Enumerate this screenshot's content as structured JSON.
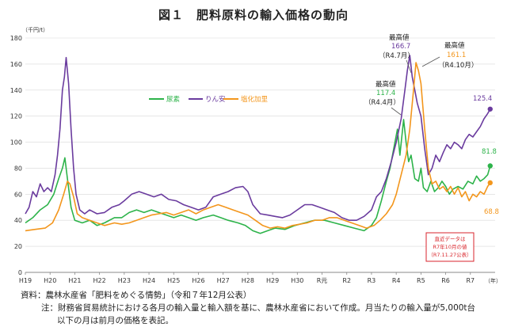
{
  "title": "図１　肥料原料の輸入価格の動向",
  "chart_data": {
    "type": "line",
    "unit_label": "（千円/t）",
    "year_label": "（年）",
    "y_ticks": [
      0,
      20,
      40,
      60,
      80,
      100,
      120,
      140,
      160,
      180
    ],
    "x_ticks": [
      "H19",
      "H20",
      "H21",
      "H22",
      "H23",
      "H24",
      "H25",
      "H26",
      "H27",
      "H28",
      "H29",
      "H30",
      "R元",
      "R2",
      "R3",
      "R4",
      "R5",
      "R6",
      "R7"
    ],
    "ylim": [
      0,
      180
    ],
    "xlim": [
      2007.0,
      2026.0
    ],
    "legend": [
      "尿素",
      "りん安",
      "塩化加里"
    ],
    "series": [
      {
        "name": "尿素",
        "color": "#2db34a",
        "points": [
          [
            2007.0,
            38
          ],
          [
            2007.3,
            42
          ],
          [
            2007.6,
            48
          ],
          [
            2007.9,
            52
          ],
          [
            2008.15,
            60
          ],
          [
            2008.35,
            72
          ],
          [
            2008.5,
            80
          ],
          [
            2008.6,
            88
          ],
          [
            2008.7,
            72
          ],
          [
            2008.85,
            50
          ],
          [
            2009.0,
            40
          ],
          [
            2009.3,
            38
          ],
          [
            2009.6,
            40
          ],
          [
            2009.9,
            36
          ],
          [
            2010.2,
            38
          ],
          [
            2010.6,
            42
          ],
          [
            2010.9,
            42
          ],
          [
            2011.2,
            46
          ],
          [
            2011.5,
            48
          ],
          [
            2011.8,
            46
          ],
          [
            2012.1,
            48
          ],
          [
            2012.4,
            46
          ],
          [
            2012.7,
            44
          ],
          [
            2013.0,
            42
          ],
          [
            2013.3,
            44
          ],
          [
            2013.6,
            42
          ],
          [
            2013.9,
            40
          ],
          [
            2014.2,
            42
          ],
          [
            2014.6,
            44
          ],
          [
            2014.9,
            42
          ],
          [
            2015.2,
            40
          ],
          [
            2015.6,
            38
          ],
          [
            2015.9,
            36
          ],
          [
            2016.2,
            32
          ],
          [
            2016.5,
            30
          ],
          [
            2016.8,
            32
          ],
          [
            2017.1,
            34
          ],
          [
            2017.5,
            33
          ],
          [
            2017.9,
            36
          ],
          [
            2018.3,
            38
          ],
          [
            2018.7,
            40
          ],
          [
            2019.1,
            40
          ],
          [
            2019.5,
            38
          ],
          [
            2019.9,
            36
          ],
          [
            2020.3,
            34
          ],
          [
            2020.7,
            32
          ],
          [
            2021.0,
            36
          ],
          [
            2021.2,
            42
          ],
          [
            2021.4,
            55
          ],
          [
            2021.6,
            70
          ],
          [
            2021.75,
            80
          ],
          [
            2021.9,
            95
          ],
          [
            2022.05,
            110
          ],
          [
            2022.15,
            90
          ],
          [
            2022.3,
            117.4
          ],
          [
            2022.4,
            100
          ],
          [
            2022.5,
            85
          ],
          [
            2022.6,
            90
          ],
          [
            2022.75,
            72
          ],
          [
            2022.9,
            70
          ],
          [
            2023.0,
            80
          ],
          [
            2023.1,
            65
          ],
          [
            2023.25,
            62
          ],
          [
            2023.4,
            70
          ],
          [
            2023.55,
            62
          ],
          [
            2023.7,
            65
          ],
          [
            2023.85,
            70
          ],
          [
            2024.0,
            66
          ],
          [
            2024.15,
            60
          ],
          [
            2024.3,
            64
          ],
          [
            2024.5,
            66
          ],
          [
            2024.7,
            64
          ],
          [
            2024.9,
            70
          ],
          [
            2025.1,
            68
          ],
          [
            2025.25,
            74
          ],
          [
            2025.4,
            70
          ],
          [
            2025.55,
            72
          ],
          [
            2025.7,
            75
          ],
          [
            2025.8,
            81.8
          ]
        ]
      },
      {
        "name": "りん安",
        "color": "#6a3b9e",
        "points": [
          [
            2007.0,
            45
          ],
          [
            2007.15,
            50
          ],
          [
            2007.3,
            62
          ],
          [
            2007.45,
            58
          ],
          [
            2007.6,
            68
          ],
          [
            2007.75,
            62
          ],
          [
            2007.9,
            65
          ],
          [
            2008.05,
            62
          ],
          [
            2008.2,
            75
          ],
          [
            2008.3,
            90
          ],
          [
            2008.4,
            110
          ],
          [
            2008.5,
            140
          ],
          [
            2008.58,
            150
          ],
          [
            2008.65,
            165
          ],
          [
            2008.75,
            145
          ],
          [
            2008.85,
            110
          ],
          [
            2008.95,
            80
          ],
          [
            2009.05,
            60
          ],
          [
            2009.2,
            48
          ],
          [
            2009.4,
            45
          ],
          [
            2009.6,
            48
          ],
          [
            2009.9,
            45
          ],
          [
            2010.2,
            46
          ],
          [
            2010.5,
            50
          ],
          [
            2010.8,
            52
          ],
          [
            2011.0,
            55
          ],
          [
            2011.3,
            60
          ],
          [
            2011.6,
            62
          ],
          [
            2011.9,
            60
          ],
          [
            2012.2,
            58
          ],
          [
            2012.5,
            60
          ],
          [
            2012.8,
            56
          ],
          [
            2013.1,
            55
          ],
          [
            2013.4,
            52
          ],
          [
            2013.7,
            50
          ],
          [
            2014.0,
            48
          ],
          [
            2014.3,
            50
          ],
          [
            2014.6,
            58
          ],
          [
            2014.9,
            60
          ],
          [
            2015.2,
            62
          ],
          [
            2015.5,
            65
          ],
          [
            2015.8,
            66
          ],
          [
            2016.0,
            62
          ],
          [
            2016.2,
            52
          ],
          [
            2016.5,
            45
          ],
          [
            2016.8,
            44
          ],
          [
            2017.1,
            43
          ],
          [
            2017.4,
            42
          ],
          [
            2017.7,
            44
          ],
          [
            2018.0,
            48
          ],
          [
            2018.3,
            52
          ],
          [
            2018.6,
            52
          ],
          [
            2018.9,
            50
          ],
          [
            2019.2,
            48
          ],
          [
            2019.5,
            46
          ],
          [
            2019.8,
            42
          ],
          [
            2020.1,
            40
          ],
          [
            2020.4,
            40
          ],
          [
            2020.7,
            43
          ],
          [
            2021.0,
            48
          ],
          [
            2021.2,
            58
          ],
          [
            2021.4,
            62
          ],
          [
            2021.6,
            72
          ],
          [
            2021.8,
            85
          ],
          [
            2022.0,
            100
          ],
          [
            2022.2,
            118
          ],
          [
            2022.35,
            140
          ],
          [
            2022.45,
            155
          ],
          [
            2022.55,
            166.7
          ],
          [
            2022.65,
            150
          ],
          [
            2022.75,
            140
          ],
          [
            2022.85,
            130
          ],
          [
            2023.0,
            120
          ],
          [
            2023.15,
            95
          ],
          [
            2023.3,
            75
          ],
          [
            2023.45,
            80
          ],
          [
            2023.6,
            90
          ],
          [
            2023.75,
            85
          ],
          [
            2023.9,
            92
          ],
          [
            2024.05,
            98
          ],
          [
            2024.2,
            95
          ],
          [
            2024.35,
            100
          ],
          [
            2024.5,
            98
          ],
          [
            2024.65,
            95
          ],
          [
            2024.8,
            102
          ],
          [
            2024.95,
            106
          ],
          [
            2025.1,
            104
          ],
          [
            2025.25,
            108
          ],
          [
            2025.4,
            112
          ],
          [
            2025.55,
            118
          ],
          [
            2025.7,
            122
          ],
          [
            2025.8,
            125.4
          ]
        ]
      },
      {
        "name": "塩化加里",
        "color": "#f3961c",
        "points": [
          [
            2007.0,
            32
          ],
          [
            2007.4,
            33
          ],
          [
            2007.8,
            34
          ],
          [
            2008.1,
            38
          ],
          [
            2008.35,
            48
          ],
          [
            2008.55,
            60
          ],
          [
            2008.7,
            70
          ],
          [
            2008.8,
            68
          ],
          [
            2008.95,
            58
          ],
          [
            2009.1,
            45
          ],
          [
            2009.3,
            42
          ],
          [
            2009.6,
            40
          ],
          [
            2009.9,
            38
          ],
          [
            2010.2,
            36
          ],
          [
            2010.6,
            38
          ],
          [
            2010.9,
            37
          ],
          [
            2011.2,
            38
          ],
          [
            2011.5,
            40
          ],
          [
            2011.8,
            42
          ],
          [
            2012.1,
            44
          ],
          [
            2012.4,
            45
          ],
          [
            2012.7,
            46
          ],
          [
            2013.0,
            44
          ],
          [
            2013.3,
            46
          ],
          [
            2013.6,
            48
          ],
          [
            2013.9,
            45
          ],
          [
            2014.2,
            48
          ],
          [
            2014.5,
            50
          ],
          [
            2014.8,
            52
          ],
          [
            2015.1,
            50
          ],
          [
            2015.4,
            48
          ],
          [
            2015.7,
            46
          ],
          [
            2016.0,
            44
          ],
          [
            2016.3,
            40
          ],
          [
            2016.6,
            36
          ],
          [
            2016.9,
            34
          ],
          [
            2017.2,
            35
          ],
          [
            2017.5,
            34
          ],
          [
            2017.8,
            36
          ],
          [
            2018.1,
            37
          ],
          [
            2018.4,
            38
          ],
          [
            2018.7,
            40
          ],
          [
            2019.0,
            40
          ],
          [
            2019.3,
            42
          ],
          [
            2019.6,
            42
          ],
          [
            2019.9,
            40
          ],
          [
            2020.2,
            38
          ],
          [
            2020.5,
            36
          ],
          [
            2020.8,
            34
          ],
          [
            2021.1,
            36
          ],
          [
            2021.35,
            40
          ],
          [
            2021.6,
            45
          ],
          [
            2021.85,
            52
          ],
          [
            2022.0,
            60
          ],
          [
            2022.2,
            75
          ],
          [
            2022.4,
            90
          ],
          [
            2022.55,
            110
          ],
          [
            2022.7,
            140
          ],
          [
            2022.8,
            161.1
          ],
          [
            2022.9,
            155
          ],
          [
            2023.0,
            145
          ],
          [
            2023.15,
            110
          ],
          [
            2023.3,
            80
          ],
          [
            2023.45,
            68
          ],
          [
            2023.6,
            70
          ],
          [
            2023.75,
            64
          ],
          [
            2023.9,
            66
          ],
          [
            2024.05,
            62
          ],
          [
            2024.2,
            66
          ],
          [
            2024.35,
            60
          ],
          [
            2024.5,
            65
          ],
          [
            2024.65,
            58
          ],
          [
            2024.8,
            62
          ],
          [
            2024.95,
            55
          ],
          [
            2025.1,
            60
          ],
          [
            2025.25,
            58
          ],
          [
            2025.4,
            62
          ],
          [
            2025.55,
            60
          ],
          [
            2025.7,
            66
          ],
          [
            2025.8,
            68.8
          ]
        ]
      }
    ],
    "annotations": {
      "peak_phos_label": "最高値",
      "peak_phos_value": "166.7",
      "peak_phos_date": "（R4.7月）",
      "peak_pot_label": "最高値",
      "peak_pot_value": "161.1",
      "peak_pot_date": "（R4.10月）",
      "peak_urea_label": "最高値",
      "peak_urea_value": "117.4",
      "peak_urea_date": "（R4.4月）",
      "end_phos": "125.4",
      "end_urea": "81.8",
      "end_pot": "68.8",
      "recent_line1": "直近データは",
      "recent_line2": "R7年10月の値",
      "recent_line3": "（R7.11.27公表）"
    }
  },
  "notes": {
    "source": "資料：農林水産省「肥料をめぐる情勢」（令和７年12月公表）",
    "note_line1": "注：財務省貿易統計における各月の輸入量と輸入額を基に、農林水産省において作成。月当たりの輸入量が5,000t台",
    "note_line2": "以下の月は前月の価格を表記。"
  },
  "colors": {
    "urea": "#2db34a",
    "phosphate": "#6a3b9e",
    "potash": "#f3961c",
    "recent_box": "#d9262c"
  }
}
